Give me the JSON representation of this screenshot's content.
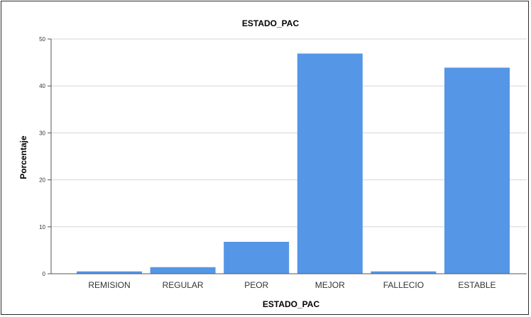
{
  "chart_data": {
    "type": "bar",
    "title": "ESTADO_PAC",
    "xlabel": "ESTADO_PAC",
    "ylabel": "Porcentaje",
    "categories": [
      "REMISION",
      "REGULAR",
      "PEOR",
      "MEJOR",
      "FALLECIO",
      "ESTABLE"
    ],
    "values": [
      0.5,
      1.4,
      6.8,
      46.9,
      0.5,
      43.9
    ],
    "ylim": [
      0,
      50
    ],
    "yticks": [
      "0",
      "10",
      "20",
      "30",
      "40",
      "50"
    ],
    "grid": true,
    "bar_color": "#5596e6"
  }
}
